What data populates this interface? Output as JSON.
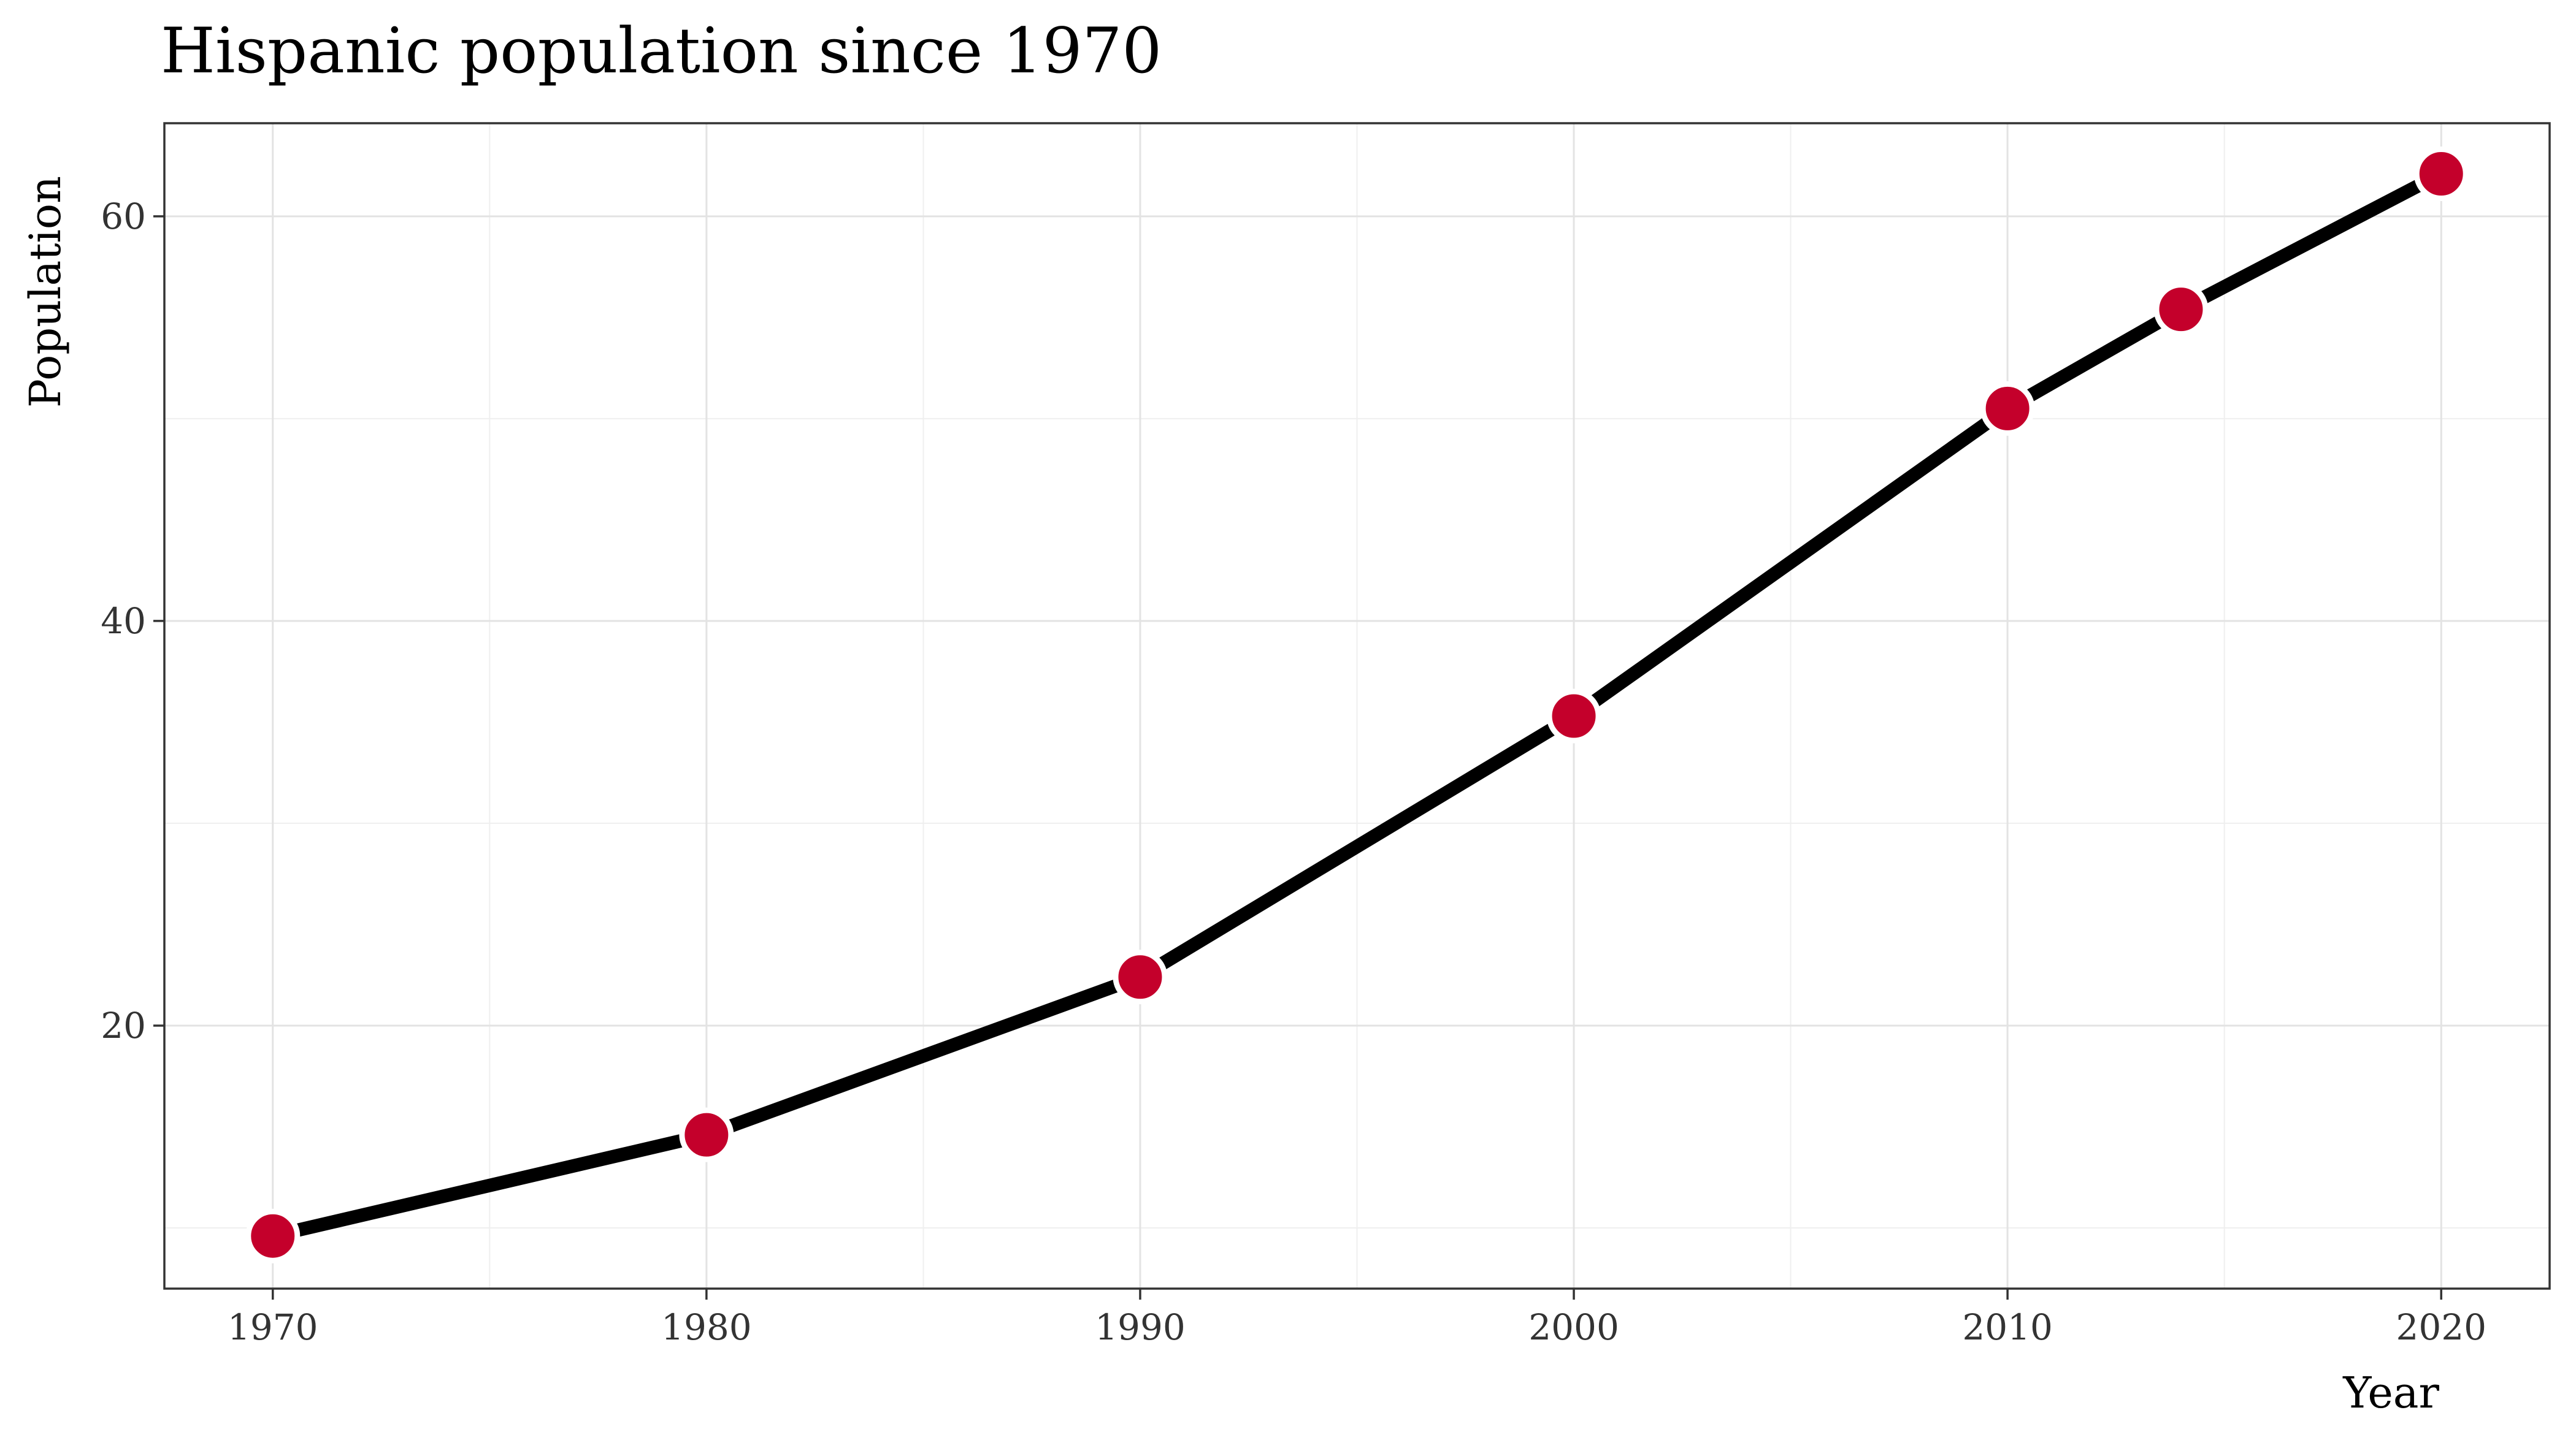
{
  "chart_data": {
    "type": "line",
    "title": "Hispanic population since 1970",
    "xlabel": "Year",
    "ylabel": "Population",
    "x": [
      1970,
      1980,
      1990,
      2000,
      2010,
      2014,
      2020
    ],
    "series": [
      {
        "values": [
          9.6,
          14.6,
          22.4,
          35.3,
          50.5,
          55.4,
          62.1
        ]
      }
    ],
    "xlim": [
      1967.5,
      2022.5
    ],
    "ylim": [
      7.0,
      64.6
    ],
    "x_ticks": [
      1970,
      1980,
      1990,
      2000,
      2010,
      2020
    ],
    "y_ticks": [
      20,
      40,
      60
    ],
    "grid": true,
    "line_color": "#000000",
    "point_color": "#C4002B",
    "point_outline": "#FFFFFF"
  }
}
